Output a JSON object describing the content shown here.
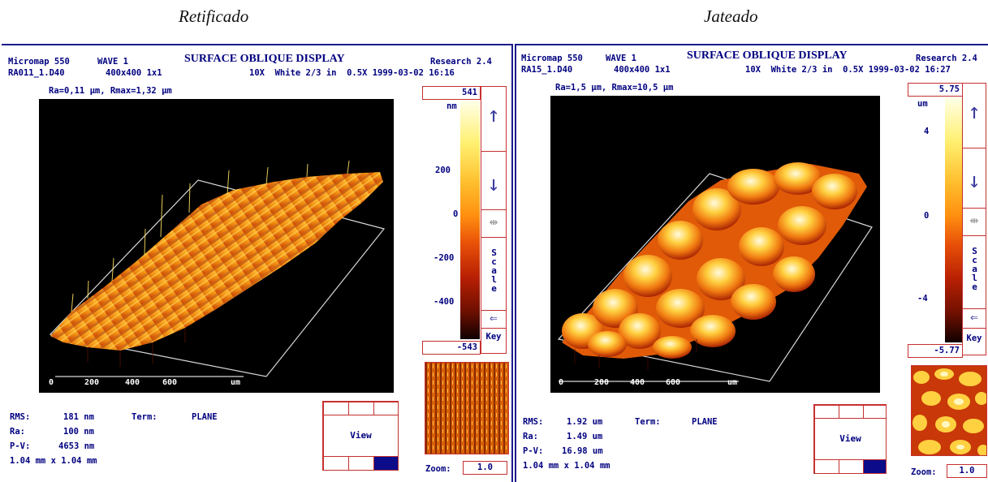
{
  "titles": {
    "left": "Retificado",
    "right": "Jateado"
  },
  "panels": [
    {
      "app": "Micromap 550",
      "mode": "WAVE 1",
      "display": "SURFACE OBLIQUE DISPLAY",
      "version": "Research 2.4",
      "file": "RA011_1.D40",
      "res": "400x400 1x1",
      "settings": "10X  White 2/3 in  0.5X 1999-03-02 16:16",
      "rough": "Ra=0,11 µm, Rmax=1,32 µm",
      "scale": {
        "top": "541",
        "unit": "nm",
        "ticks": [
          "200",
          "0",
          "-200",
          "-400"
        ],
        "bottom": "-543"
      },
      "axis": {
        "ticks": [
          "0",
          "200",
          "400",
          "600"
        ],
        "unit": "um"
      },
      "buttons": {
        "scale": "Scale",
        "key": "Key",
        "view": "View",
        "zoom_label": "Zoom:",
        "zoom_value": "1.0"
      },
      "stats": {
        "rms_label": "RMS:",
        "rms": "181 nm",
        "ra_label": "Ra:",
        "ra": "100 nm",
        "pv_label": "P-V:",
        "pv": "4653 nm",
        "term_label": "Term:",
        "term": "PLANE",
        "area": "1.04 mm x 1.04 mm"
      },
      "colors": {
        "surface": "#f08c10",
        "highlight": "#ffe060"
      }
    },
    {
      "app": "Micromap 550",
      "mode": "WAVE 1",
      "display": "SURFACE OBLIQUE DISPLAY",
      "version": "Research 2.4",
      "file": "RA15_1.D40",
      "res": "400x400 1x1",
      "settings": "10X  White 2/3 in  0.5X 1999-03-02 16:27",
      "rough": "Ra=1,5 µm, Rmax=10,5 µm",
      "scale": {
        "top": "5.75",
        "unit": "um",
        "ticks": [
          "4",
          "0",
          "-4"
        ],
        "bottom": "-5.77"
      },
      "axis": {
        "ticks": [
          "0",
          "200",
          "400",
          "600"
        ],
        "unit": "um"
      },
      "buttons": {
        "scale": "Scale",
        "key": "Key",
        "view": "View",
        "zoom_label": "Zoom:",
        "zoom_value": "1.0"
      },
      "stats": {
        "rms_label": "RMS:",
        "rms": "1.92 um",
        "ra_label": "Ra:",
        "ra": "1.49 um",
        "pv_label": "P-V:",
        "pv": "16.98 um",
        "term_label": "Term:",
        "term": "PLANE",
        "area": "1.04 mm x 1.04 mm"
      },
      "colors": {
        "surface": "#ff8c10",
        "highlight": "#fff2a0"
      }
    }
  ]
}
